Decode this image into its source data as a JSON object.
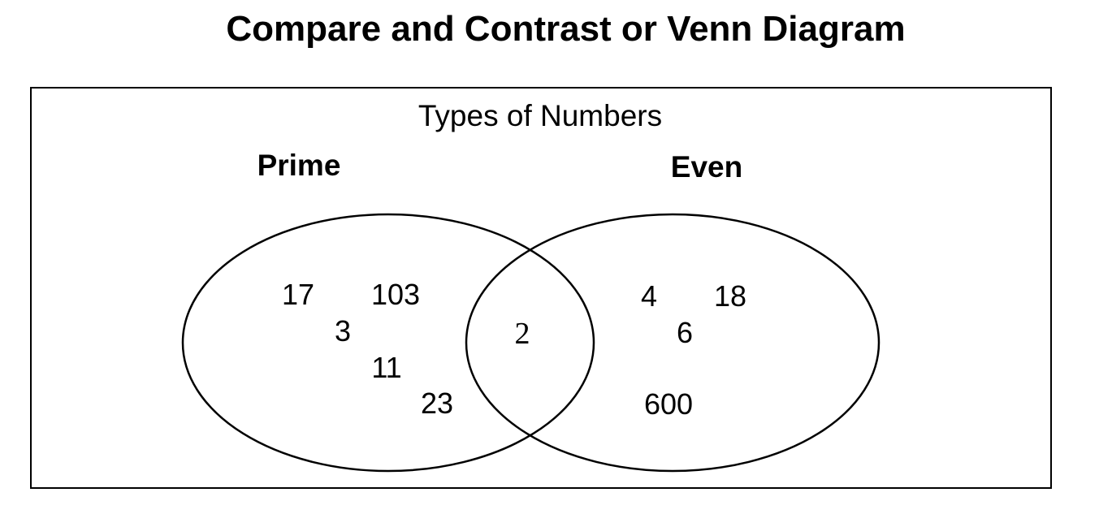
{
  "title": "Compare and Contrast or Venn Diagram",
  "diagram": {
    "heading": "Types of Numbers",
    "sets": {
      "left": {
        "label": "Prime",
        "items": [
          "17",
          "103",
          "3",
          "11",
          "23"
        ]
      },
      "right": {
        "label": "Even",
        "items": [
          "4",
          "18",
          "6",
          "600"
        ]
      },
      "intersection": {
        "items": [
          "2"
        ]
      }
    }
  }
}
